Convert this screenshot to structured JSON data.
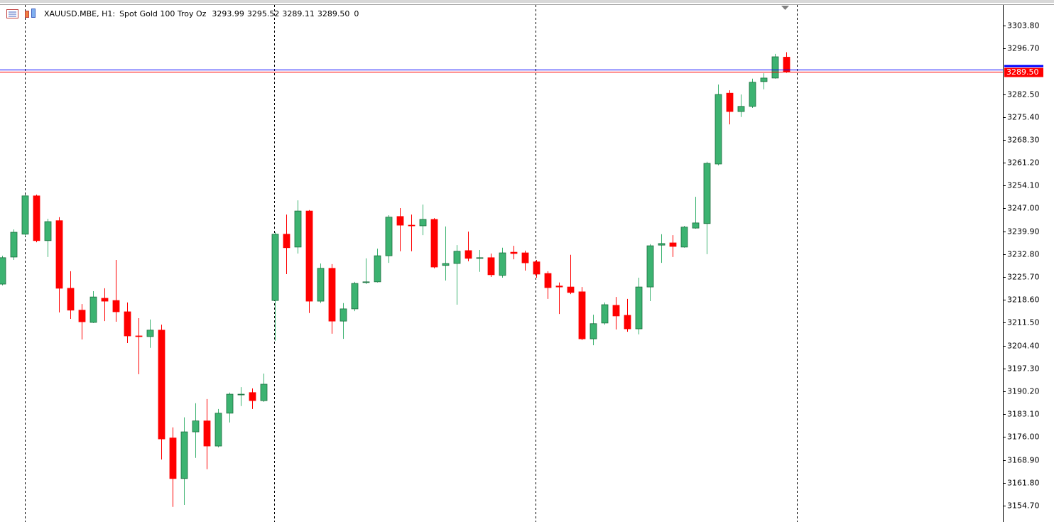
{
  "chart_data": {
    "type": "candlestick",
    "symbol": "XAUUSD.MBE, H1:",
    "description": "Spot Gold 100 Troy Oz",
    "header_values": [
      "3293.99",
      "3295.52",
      "3289.11",
      "3289.50"
    ],
    "header_extra": "0",
    "up_color": "#3cb371",
    "down_color": "#ff0000",
    "ylim": [
      3149.6,
      3310.2
    ],
    "yticks": [
      {
        "value": 3303.8,
        "label": "3303.80"
      },
      {
        "value": 3296.7,
        "label": "3296.70"
      },
      {
        "value": 3282.5,
        "label": "3282.50"
      },
      {
        "value": 3275.4,
        "label": "3275.40"
      },
      {
        "value": 3268.3,
        "label": "3268.30"
      },
      {
        "value": 3261.2,
        "label": "3261.20"
      },
      {
        "value": 3254.1,
        "label": "3254.10"
      },
      {
        "value": 3247.0,
        "label": "3247.00"
      },
      {
        "value": 3239.9,
        "label": "3239.90"
      },
      {
        "value": 3232.8,
        "label": "3232.80"
      },
      {
        "value": 3225.7,
        "label": "3225.70"
      },
      {
        "value": 3218.6,
        "label": "3218.60"
      },
      {
        "value": 3211.5,
        "label": "3211.50"
      },
      {
        "value": 3204.4,
        "label": "3204.40"
      },
      {
        "value": 3197.3,
        "label": "3197.30"
      },
      {
        "value": 3190.2,
        "label": "3190.20"
      },
      {
        "value": 3183.1,
        "label": "3183.10"
      },
      {
        "value": 3176.0,
        "label": "3176.00"
      },
      {
        "value": 3168.9,
        "label": "3168.90"
      },
      {
        "value": 3161.8,
        "label": "3161.80"
      },
      {
        "value": 3154.7,
        "label": "3154.70"
      }
    ],
    "bid": {
      "value": 3289.5,
      "label": "3289.50",
      "color": "#ff0000"
    },
    "ask": {
      "value": 3290.1,
      "color": "#0000ff"
    },
    "open": [
      3223.5,
      3231.9,
      3239.0,
      3250.9,
      3237.0,
      3243.2,
      3222.2,
      3215.4,
      3211.6,
      3219.1,
      3218.4,
      3214.9,
      3207.4,
      3207.2,
      3209.2,
      3175.7,
      3163.1,
      3177.6,
      3181.0,
      3173.2,
      3183.4,
      3189.1,
      3189.8,
      3187.3,
      3218.4,
      3239.0,
      3235.0,
      3246.2,
      3218.2,
      3228.4,
      3212.0,
      3215.8,
      3224.0,
      3224.2,
      3232.3,
      3244.5,
      3241.8,
      3241.6,
      3243.6,
      3229.3,
      3229.9,
      3233.9,
      3231.5,
      3231.7,
      3226.2,
      3233.4,
      3233.2,
      3230.4,
      3226.8,
      3222.9,
      3222.6,
      3221.1,
      3206.5,
      3211.4,
      3216.9,
      3213.8,
      3209.6,
      3222.6,
      3235.6,
      3236.3,
      3235.0,
      3240.9,
      3242.3,
      3260.8,
      3282.8,
      3277.1,
      3278.7,
      3286.4,
      3287.5,
      3293.99
    ],
    "high": [
      3232.3,
      3240.5,
      3251.3,
      3251.3,
      3243.8,
      3244.3,
      3227.5,
      3217.3,
      3221.3,
      3222.2,
      3231.0,
      3217.8,
      3212.9,
      3212.5,
      3210.9,
      3179.0,
      3182.1,
      3186.5,
      3187.8,
      3184.7,
      3189.8,
      3191.5,
      3191.1,
      3195.7,
      3239.6,
      3245.1,
      3249.5,
      3246.5,
      3229.9,
      3229.7,
      3217.6,
      3224.2,
      3231.5,
      3234.5,
      3244.9,
      3247.1,
      3245.1,
      3248.2,
      3244.0,
      3241.4,
      3235.6,
      3239.8,
      3234.1,
      3233.0,
      3234.8,
      3235.4,
      3233.9,
      3231.0,
      3227.5,
      3224.0,
      3232.6,
      3222.6,
      3214.0,
      3217.8,
      3219.5,
      3218.9,
      3225.5,
      3235.9,
      3239.0,
      3238.7,
      3241.6,
      3250.6,
      3261.5,
      3285.5,
      3283.7,
      3282.4,
      3287.3,
      3289.0,
      3295.0,
      3295.52
    ],
    "low": [
      3223.1,
      3231.0,
      3238.5,
      3236.5,
      3231.9,
      3214.7,
      3212.7,
      3206.3,
      3211.4,
      3212.0,
      3211.8,
      3205.2,
      3195.5,
      3203.7,
      3169.0,
      3154.3,
      3154.9,
      3169.5,
      3166.0,
      3172.8,
      3180.5,
      3185.6,
      3184.7,
      3186.9,
      3205.9,
      3226.6,
      3233.0,
      3214.5,
      3217.6,
      3208.1,
      3206.5,
      3215.1,
      3223.5,
      3224.0,
      3230.1,
      3233.7,
      3233.7,
      3238.7,
      3228.4,
      3224.6,
      3217.1,
      3230.6,
      3227.3,
      3225.7,
      3225.5,
      3231.2,
      3227.7,
      3225.5,
      3218.9,
      3214.2,
      3220.4,
      3206.1,
      3204.5,
      3210.9,
      3209.4,
      3208.7,
      3207.9,
      3218.2,
      3230.1,
      3231.9,
      3234.8,
      3240.7,
      3232.8,
      3260.4,
      3273.1,
      3275.4,
      3278.2,
      3284.0,
      3287.3,
      3289.11
    ],
    "close": [
      3231.7,
      3239.6,
      3250.9,
      3237.0,
      3242.9,
      3222.2,
      3215.4,
      3211.8,
      3219.5,
      3218.2,
      3214.9,
      3207.4,
      3207.2,
      3209.2,
      3175.4,
      3163.1,
      3177.6,
      3181.0,
      3173.2,
      3183.4,
      3189.3,
      3189.3,
      3187.3,
      3192.4,
      3239.0,
      3234.8,
      3246.2,
      3218.2,
      3228.4,
      3212.0,
      3215.8,
      3223.7,
      3224.2,
      3232.3,
      3244.3,
      3241.8,
      3241.6,
      3243.6,
      3228.8,
      3229.9,
      3233.7,
      3231.5,
      3231.7,
      3226.4,
      3233.2,
      3233.0,
      3230.1,
      3226.6,
      3222.4,
      3222.6,
      3220.9,
      3206.5,
      3211.2,
      3217.1,
      3213.6,
      3209.6,
      3222.6,
      3235.4,
      3236.1,
      3235.2,
      3241.2,
      3242.5,
      3261.0,
      3282.4,
      3277.1,
      3278.7,
      3286.2,
      3287.5,
      3294.1,
      3289.5
    ]
  }
}
